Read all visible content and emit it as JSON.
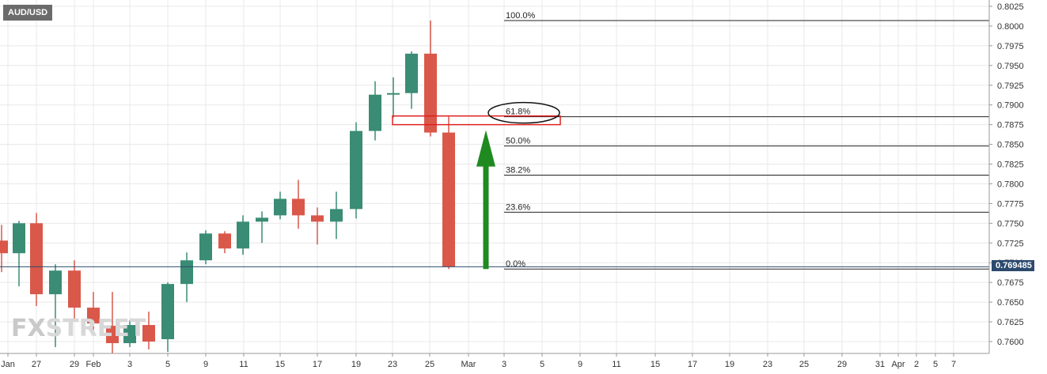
{
  "symbol": "AUD/USD",
  "watermark": {
    "left": "FX",
    "right": "STREET"
  },
  "last_price": "0.769485",
  "colors": {
    "up": "#3a8c74",
    "down": "#d9584a",
    "arrow": "#1f8a1f",
    "grid": "#e8e8e8",
    "price_line": "#2c4a6e",
    "highlight_box": "#e02020"
  },
  "chart_data": {
    "type": "candlestick",
    "ylim": [
      0.7585,
      0.8025
    ],
    "y_ticks": [
      "0.8025",
      "0.8000",
      "0.7975",
      "0.7950",
      "0.7925",
      "0.7900",
      "0.7875",
      "0.7850",
      "0.7825",
      "0.7800",
      "0.7775",
      "0.7750",
      "0.7725",
      "0.7700",
      "0.7675",
      "0.7650",
      "0.7625",
      "0.7600"
    ],
    "x_ticks": [
      "Jan",
      "27",
      "29",
      "Feb",
      "3",
      "5",
      "9",
      "11",
      "15",
      "17",
      "19",
      "23",
      "25",
      "Mar",
      "3",
      "5",
      "9",
      "11",
      "15",
      "17",
      "19",
      "23",
      "25",
      "29",
      "31",
      "Apr",
      "2",
      "5",
      "7"
    ],
    "candles": [
      {
        "date": "Jan 25",
        "o": 0.7728,
        "h": 0.7748,
        "l": 0.7688,
        "c": 0.7712
      },
      {
        "date": "Jan 26",
        "o": 0.7712,
        "h": 0.7753,
        "l": 0.767,
        "c": 0.775
      },
      {
        "date": "Jan 27",
        "o": 0.775,
        "h": 0.7763,
        "l": 0.7645,
        "c": 0.766
      },
      {
        "date": "Jan 28",
        "o": 0.766,
        "h": 0.7698,
        "l": 0.7593,
        "c": 0.769
      },
      {
        "date": "Jan 29",
        "o": 0.769,
        "h": 0.7703,
        "l": 0.7628,
        "c": 0.7643
      },
      {
        "date": "Feb 1",
        "o": 0.7643,
        "h": 0.7663,
        "l": 0.7613,
        "c": 0.7623
      },
      {
        "date": "Feb 2",
        "o": 0.762,
        "h": 0.7663,
        "l": 0.7585,
        "c": 0.7598
      },
      {
        "date": "Feb 3",
        "o": 0.7598,
        "h": 0.7627,
        "l": 0.7593,
        "c": 0.7621
      },
      {
        "date": "Feb 4",
        "o": 0.7621,
        "h": 0.7638,
        "l": 0.759,
        "c": 0.76
      },
      {
        "date": "Feb 5",
        "o": 0.7603,
        "h": 0.7675,
        "l": 0.7587,
        "c": 0.7673
      },
      {
        "date": "Feb 8",
        "o": 0.7673,
        "h": 0.7713,
        "l": 0.765,
        "c": 0.7703
      },
      {
        "date": "Feb 9",
        "o": 0.7703,
        "h": 0.7741,
        "l": 0.7698,
        "c": 0.7737
      },
      {
        "date": "Feb 10",
        "o": 0.7737,
        "h": 0.774,
        "l": 0.7712,
        "c": 0.7718
      },
      {
        "date": "Feb 11",
        "o": 0.7718,
        "h": 0.776,
        "l": 0.771,
        "c": 0.7752
      },
      {
        "date": "Feb 12",
        "o": 0.7752,
        "h": 0.7765,
        "l": 0.7725,
        "c": 0.7757
      },
      {
        "date": "Feb 15",
        "o": 0.776,
        "h": 0.779,
        "l": 0.7755,
        "c": 0.7781
      },
      {
        "date": "Feb 16",
        "o": 0.7781,
        "h": 0.7805,
        "l": 0.7743,
        "c": 0.776
      },
      {
        "date": "Feb 17",
        "o": 0.776,
        "h": 0.777,
        "l": 0.7723,
        "c": 0.7752
      },
      {
        "date": "Feb 18",
        "o": 0.7752,
        "h": 0.779,
        "l": 0.773,
        "c": 0.7768
      },
      {
        "date": "Feb 19",
        "o": 0.7768,
        "h": 0.7878,
        "l": 0.7756,
        "c": 0.7867
      },
      {
        "date": "Feb 22",
        "o": 0.7867,
        "h": 0.793,
        "l": 0.7855,
        "c": 0.7913
      },
      {
        "date": "Feb 23",
        "o": 0.7913,
        "h": 0.7935,
        "l": 0.7884,
        "c": 0.7915
      },
      {
        "date": "Feb 24",
        "o": 0.7915,
        "h": 0.7968,
        "l": 0.7895,
        "c": 0.7965
      },
      {
        "date": "Feb 25",
        "o": 0.7965,
        "h": 0.8007,
        "l": 0.786,
        "c": 0.7865
      },
      {
        "date": "Feb 26",
        "o": 0.7865,
        "h": 0.7885,
        "l": 0.7692,
        "c": 0.7695
      }
    ],
    "fib_levels": [
      {
        "label": "100.0%",
        "price": 0.8007
      },
      {
        "label": "61.8%",
        "price": 0.7885
      },
      {
        "label": "50.0%",
        "price": 0.7848
      },
      {
        "label": "38.2%",
        "price": 0.7811
      },
      {
        "label": "23.6%",
        "price": 0.7764
      },
      {
        "label": "0.0%",
        "price": 0.7692
      }
    ],
    "last_price": 0.769485
  }
}
